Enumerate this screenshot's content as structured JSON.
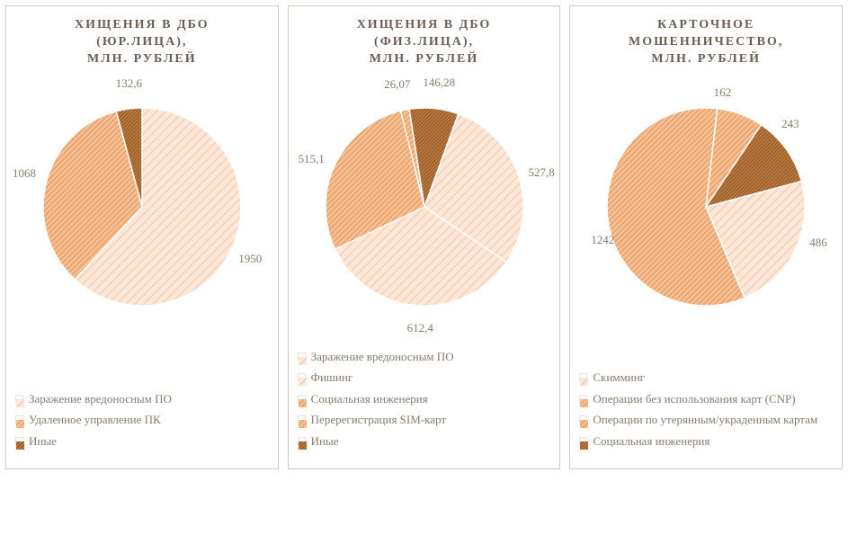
{
  "background_color": "#ffffff",
  "panel_border_color": "#d0c7be",
  "title_color": "#6b5d54",
  "label_color": "#8a7a6c",
  "title_fontsize": 14,
  "label_fontsize": 13,
  "pie_radius": 110,
  "palette": {
    "pink": {
      "fill": "#fde7d8",
      "hatch": "#f7cdb1",
      "style": "diag-wide"
    },
    "orange": {
      "fill": "#f6bf94",
      "hatch": "#e79a5f",
      "style": "diag-tight"
    },
    "brown": {
      "fill": "#c47b3e",
      "hatch": "#8b5a2b",
      "style": "dense"
    }
  },
  "charts": [
    {
      "title": "ХИЩЕНИЯ В ДБО\n(ЮР.ЛИЦА),\nМЛН. РУБЛЕЙ",
      "start_angle": -90,
      "slices": [
        {
          "value": 1950,
          "label": "1950",
          "color": "pink",
          "label_offset": [
            18,
            18
          ]
        },
        {
          "value": 1068,
          "label": "1068",
          "color": "orange",
          "label_offset": [
            -24,
            -10
          ]
        },
        {
          "value": 132.6,
          "label": "132,6",
          "color": "brown",
          "label_offset": [
            0,
            -28
          ]
        }
      ],
      "legend": [
        {
          "text": "Заражение вредоносным ПО",
          "color": "pink"
        },
        {
          "text": "Удаленное управление ПК",
          "color": "orange"
        },
        {
          "text": "Иные",
          "color": "brown"
        }
      ]
    },
    {
      "title": "ХИЩЕНИЯ В ДБО\n(ФИЗ.ЛИЦА),\nМЛН. РУБЛЕЙ",
      "start_angle": -70,
      "slices": [
        {
          "value": 527.8,
          "label": "527,8",
          "color": "pink",
          "label_offset": [
            26,
            -4
          ]
        },
        {
          "value": 612.4,
          "label": "612,4",
          "color": "pink",
          "label_offset": [
            4,
            26
          ]
        },
        {
          "value": 515.1,
          "label": "515,1",
          "color": "orange",
          "label_offset": [
            -26,
            -6
          ]
        },
        {
          "value": 26.07,
          "label": "26,07",
          "color": "orange",
          "label_offset": [
            -8,
            -28
          ]
        },
        {
          "value": 146.28,
          "label": "146,28",
          "color": "brown",
          "label_offset": [
            6,
            -28
          ]
        }
      ],
      "legend": [
        {
          "text": "Заражение вредоносным ПО",
          "color": "pink"
        },
        {
          "text": "Фишинг",
          "color": "pink"
        },
        {
          "text": "Социальная инженерия",
          "color": "orange"
        },
        {
          "text": "Перерегистрация SIM-карт",
          "color": "orange"
        },
        {
          "text": "Иные",
          "color": "brown"
        }
      ]
    },
    {
      "title": "КАРТОЧНОЕ\nМОШЕННИЧЕСТВО,\nМЛН. РУБЛЕЙ",
      "start_angle": -15,
      "slices": [
        {
          "value": 486,
          "label": "486",
          "color": "pink",
          "label_offset": [
            26,
            -8
          ]
        },
        {
          "value": 1242,
          "label": "1242",
          "color": "orange",
          "label_offset": [
            -6,
            22
          ]
        },
        {
          "value": 162,
          "label": "162",
          "color": "orange",
          "label_offset": [
            -20,
            -24
          ]
        },
        {
          "value": 243,
          "label": "243",
          "color": "brown",
          "label_offset": [
            4,
            -28
          ]
        }
      ],
      "legend": [
        {
          "text": "Скимминг",
          "color": "pink"
        },
        {
          "text": "Операции  без использования карт (CNP)",
          "color": "orange"
        },
        {
          "text": "Операции  по утерянным/украденным картам",
          "color": "orange"
        },
        {
          "text": "Социальная инженерия",
          "color": "brown"
        }
      ]
    }
  ]
}
